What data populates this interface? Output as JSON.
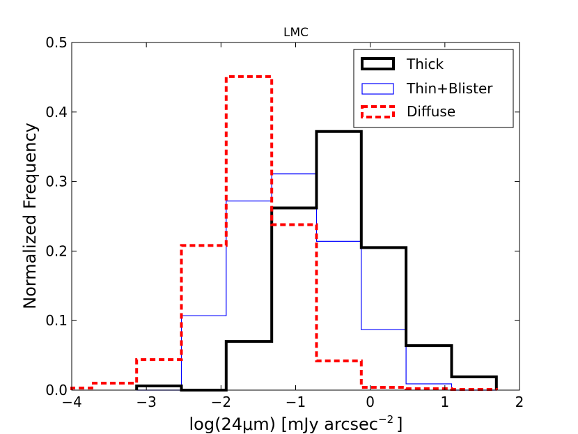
{
  "chart_data": {
    "type": "histogram",
    "title": "LMC",
    "xlabel": "log(24μm) [mJy arcsec",
    "xlabel_sup": "−2",
    "xlabel_close": "]",
    "ylabel": "Normalized Frequency",
    "xlim": [
      -4,
      2
    ],
    "ylim": [
      0,
      0.5
    ],
    "grid": false,
    "legend_position": "top-right",
    "xticks": [
      -4,
      -3,
      -2,
      -1,
      0,
      1,
      2
    ],
    "xtick_labels": [
      "−4",
      "−3",
      "−2",
      "−1",
      "0",
      "1",
      "2"
    ],
    "yticks": [
      0.0,
      0.1,
      0.2,
      0.3,
      0.4,
      0.5
    ],
    "ytick_labels": [
      "0.0",
      "0.1",
      "0.2",
      "0.3",
      "0.4",
      "0.5"
    ],
    "series": [
      {
        "name": "Thin+Blister",
        "color": "#0000ff",
        "style": "solid-thin",
        "edges": [
          -3.13,
          -2.53,
          -1.93,
          -1.32,
          -0.72,
          -0.12,
          0.48,
          1.09,
          1.69
        ],
        "values": [
          0.0,
          0.107,
          0.272,
          0.311,
          0.214,
          0.087,
          0.009,
          0.0
        ]
      },
      {
        "name": "Thick",
        "color": "#000000",
        "style": "solid-thick",
        "edges": [
          -3.13,
          -2.53,
          -1.93,
          -1.32,
          -0.72,
          -0.12,
          0.48,
          1.09,
          1.69
        ],
        "values": [
          0.006,
          0.0,
          0.07,
          0.262,
          0.372,
          0.205,
          0.064,
          0.019
        ]
      },
      {
        "name": "Diffuse",
        "color": "#ff0000",
        "style": "dashed-thick",
        "edges": [
          -4.0,
          -3.73,
          -3.13,
          -2.53,
          -1.93,
          -1.32,
          -0.72,
          -0.12,
          0.48,
          1.09,
          1.69
        ],
        "values": [
          0.003,
          0.01,
          0.044,
          0.208,
          0.451,
          0.238,
          0.042,
          0.004,
          0.002,
          0.001
        ]
      }
    ]
  },
  "legend": {
    "items": [
      {
        "label": "Thick",
        "color": "#000000",
        "style": "solid-thick"
      },
      {
        "label": "Thin+Blister",
        "color": "#0000ff",
        "style": "solid-thin"
      },
      {
        "label": "Diffuse",
        "color": "#ff0000",
        "style": "dashed-thick"
      }
    ]
  }
}
